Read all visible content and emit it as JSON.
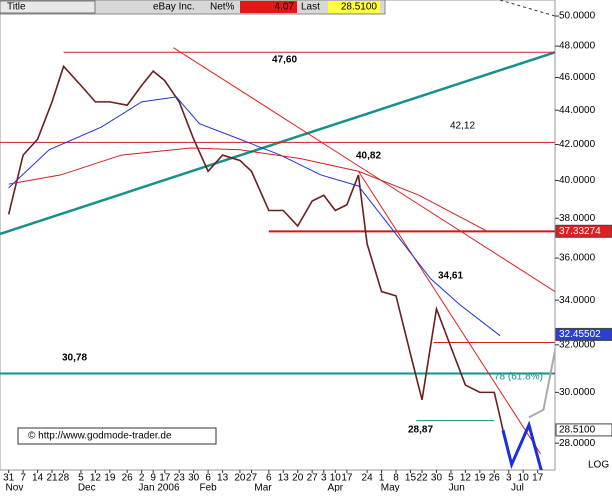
{
  "header": {
    "title": "Title",
    "symbol": "eBay Inc.",
    "net_label": "Net%",
    "net": "4.07",
    "last_label": "Last",
    "last": "28.5100"
  },
  "chart_data": {
    "type": "line",
    "log": true,
    "xlim": [
      -3,
      189
    ],
    "ylim": [
      27,
      51.1
    ],
    "series": [
      {
        "name": "close",
        "color": "#6b1e1e",
        "x": [
          0,
          5,
          10,
          15,
          19,
          25,
          30,
          35,
          41,
          46,
          50,
          54,
          59,
          64,
          69,
          74,
          80,
          84,
          90,
          95,
          100,
          105,
          109,
          113,
          117,
          121,
          124,
          129,
          134,
          139,
          143,
          148,
          153,
          158,
          163,
          168,
          171
        ],
        "values": [
          38.2,
          41.4,
          42.3,
          44.5,
          46.7,
          45.5,
          44.5,
          44.5,
          44.3,
          45.5,
          46.4,
          45.8,
          44.5,
          42.3,
          40.5,
          41.4,
          41.1,
          40.5,
          38.4,
          38.4,
          37.6,
          38.9,
          39.2,
          38.4,
          38.7,
          40.3,
          36.7,
          34.4,
          34.2,
          31.6,
          29.7,
          33.6,
          31.9,
          30.3,
          30.0,
          30.0,
          28.51
        ]
      },
      {
        "name": "ma-fast",
        "color": "#2233cc",
        "x": [
          0,
          14,
          32,
          46,
          58,
          66,
          80,
          94,
          108,
          121,
          135,
          146,
          156,
          170
        ],
        "values": [
          39.6,
          41.7,
          43.0,
          44.5,
          44.8,
          43.2,
          42.3,
          41.4,
          40.3,
          39.7,
          37.0,
          35.0,
          33.8,
          32.4
        ]
      },
      {
        "name": "ma-slow",
        "color": "#cc2222",
        "x": [
          0,
          18,
          39,
          63,
          80,
          101,
          121,
          142,
          166
        ],
        "values": [
          39.8,
          40.3,
          41.4,
          41.8,
          41.7,
          41.2,
          40.5,
          39.2,
          37.3
        ]
      }
    ],
    "lines": [
      {
        "x": [
          -3,
          189
        ],
        "y": [
          37.2,
          47.6
        ],
        "color": "#14918a",
        "width": 2.5
      },
      {
        "x": [
          19,
          189
        ],
        "y": [
          47.6,
          47.6
        ],
        "color": "#cc2222",
        "width": 1
      },
      {
        "x": [
          -3,
          189
        ],
        "y": [
          42.12,
          42.12
        ],
        "color": "#cc2222",
        "width": 1
      },
      {
        "x": [
          90,
          189
        ],
        "y": [
          37.33,
          37.33
        ],
        "color": "#dd1111",
        "width": 2
      },
      {
        "x": [
          -3,
          189
        ],
        "y": [
          30.78,
          30.78
        ],
        "color": "#14918a",
        "width": 2
      },
      {
        "x": [
          141,
          168
        ],
        "y": [
          28.87,
          28.87
        ],
        "color": "#14918a",
        "width": 1
      },
      {
        "x": [
          147,
          189
        ],
        "y": [
          32.1,
          32.1
        ],
        "color": "#cc2222",
        "width": 1
      },
      {
        "x": [
          57,
          189
        ],
        "y": [
          47.9,
          34.4
        ],
        "color": "#dd2222",
        "width": 1
      },
      {
        "x": [
          121,
          184
        ],
        "y": [
          40.5,
          27.6
        ],
        "color": "#dd2222",
        "width": 1
      },
      {
        "x": [
          171,
          174,
          180,
          185
        ],
        "y": [
          28.5,
          27.2,
          28.7,
          26.7
        ],
        "color": "#1a2ee0",
        "width": 3
      },
      {
        "x": [
          180,
          185,
          193
        ],
        "y": [
          29.0,
          29.3,
          34.4
        ],
        "color": "#aaaaaa",
        "width": 2
      },
      {
        "x": [
          170,
          189
        ],
        "y": [
          51.1,
          50.0
        ],
        "color": "#333333",
        "width": 1,
        "dash": true
      }
    ],
    "yticks": [
      {
        "value": 50,
        "label": "50.0000"
      },
      {
        "value": 48,
        "label": "48.0000"
      },
      {
        "value": 46,
        "label": "46.0000"
      },
      {
        "value": 44,
        "label": "44.0000"
      },
      {
        "value": 42,
        "label": "42.0000"
      },
      {
        "value": 40,
        "label": "40.0000"
      },
      {
        "value": 38,
        "label": "38.0000"
      },
      {
        "value": 36,
        "label": "36.0000"
      },
      {
        "value": 34,
        "label": "34.0000"
      },
      {
        "value": 32,
        "label": "32.0000"
      },
      {
        "value": 30,
        "label": "30.0000"
      },
      {
        "value": 28,
        "label": "28.0000"
      }
    ],
    "price_tags": [
      {
        "value": 37.33274,
        "label": "37.33274",
        "bg": "#e02020",
        "fg": "#ffffff"
      },
      {
        "value": 32.45502,
        "label": "32.45502",
        "bg": "#2c3ed6",
        "fg": "#ffffff"
      },
      {
        "value": 28.51,
        "label": "28.5100",
        "bg": "#ffffff",
        "fg": "#000000"
      }
    ],
    "xticks": [
      {
        "value": 0,
        "label": "31"
      },
      {
        "value": 5,
        "label": "7"
      },
      {
        "value": 10,
        "label": "14"
      },
      {
        "value": 15,
        "label": "21"
      },
      {
        "value": 19,
        "label": "28"
      },
      {
        "value": 25,
        "label": "5"
      },
      {
        "value": 30,
        "label": "12"
      },
      {
        "value": 35,
        "label": "19"
      },
      {
        "value": 41,
        "label": "26"
      },
      {
        "value": 46,
        "label": "2"
      },
      {
        "value": 50,
        "label": "9"
      },
      {
        "value": 54,
        "label": "17"
      },
      {
        "value": 59,
        "label": "23"
      },
      {
        "value": 64,
        "label": "30"
      },
      {
        "value": 69,
        "label": "6"
      },
      {
        "value": 74,
        "label": "13"
      },
      {
        "value": 80,
        "label": "20"
      },
      {
        "value": 84,
        "label": "27"
      },
      {
        "value": 90,
        "label": "6"
      },
      {
        "value": 95,
        "label": "13"
      },
      {
        "value": 100,
        "label": "20"
      },
      {
        "value": 105,
        "label": "27"
      },
      {
        "value": 109,
        "label": "3"
      },
      {
        "value": 113,
        "label": "10"
      },
      {
        "value": 117,
        "label": "17"
      },
      {
        "value": 124,
        "label": "24"
      },
      {
        "value": 129,
        "label": "1"
      },
      {
        "value": 134,
        "label": "8"
      },
      {
        "value": 139,
        "label": "15"
      },
      {
        "value": 143,
        "label": "22"
      },
      {
        "value": 148,
        "label": "30"
      },
      {
        "value": 153,
        "label": "5"
      },
      {
        "value": 158,
        "label": "12"
      },
      {
        "value": 163,
        "label": "19"
      },
      {
        "value": 168,
        "label": "26"
      },
      {
        "value": 173,
        "label": "3"
      },
      {
        "value": 178,
        "label": "10"
      },
      {
        "value": 183,
        "label": "17"
      }
    ],
    "months": [
      {
        "value": 2,
        "label": "Nov"
      },
      {
        "value": 27,
        "label": "Dec"
      },
      {
        "value": 52,
        "label": "Jan 2006"
      },
      {
        "value": 69,
        "label": "Feb"
      },
      {
        "value": 88,
        "label": "Mar"
      },
      {
        "value": 113,
        "label": "Apr"
      },
      {
        "value": 132,
        "label": "May"
      },
      {
        "value": 155,
        "label": "Jun"
      },
      {
        "value": 176,
        "label": "Jul"
      }
    ],
    "annotations": [
      "47,60",
      "42,12",
      "40,82",
      "34,61",
      "30,78",
      "28,87",
      "78 (61.8%)"
    ],
    "scale_label": "LOG",
    "copyright": "© http://www.godmode-trader.de"
  }
}
